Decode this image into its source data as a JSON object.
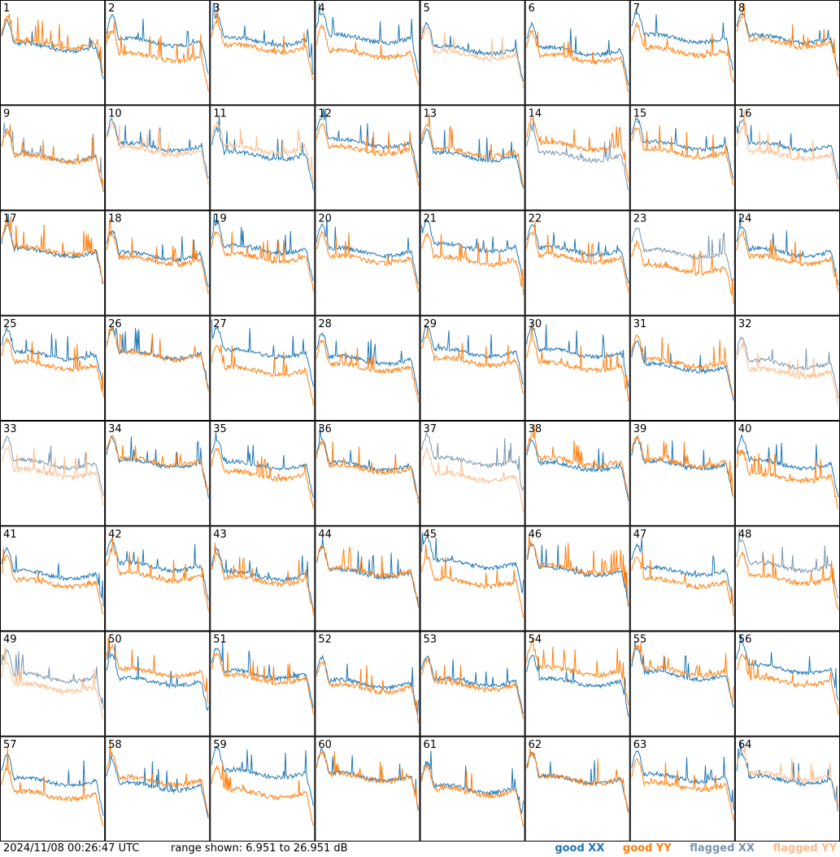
{
  "footer": {
    "timestamp": "2024/11/08 00:26:47 UTC",
    "range": "range shown: 6.951 to 26.951 dB"
  },
  "legend": {
    "good_xx": "good XX",
    "good_yy": "good YY",
    "flagged_xx": "flagged XX",
    "flagged_yy": "flagged YY"
  },
  "colors": {
    "good_xx": "#1f77b4",
    "good_yy": "#ff7f0e",
    "flagged_xx": "#7a96ad",
    "flagged_yy": "#ffbb88"
  },
  "chart_data": {
    "type": "line",
    "xlabel": "",
    "ylabel": "",
    "ylim": [
      6.951,
      26.951
    ],
    "units": "dB",
    "grid": "8x8 panels",
    "panels": [
      {
        "label": "1",
        "xx": "good",
        "yy": "good"
      },
      {
        "label": "2",
        "xx": "good",
        "yy": "good"
      },
      {
        "label": "3",
        "xx": "good",
        "yy": "good"
      },
      {
        "label": "4",
        "xx": "good",
        "yy": "good"
      },
      {
        "label": "5",
        "xx": "good",
        "yy": "flagged"
      },
      {
        "label": "6",
        "xx": "good",
        "yy": "good"
      },
      {
        "label": "7",
        "xx": "good",
        "yy": "good"
      },
      {
        "label": "8",
        "xx": "good",
        "yy": "good"
      },
      {
        "label": "9",
        "xx": "flagged",
        "yy": "good"
      },
      {
        "label": "10",
        "xx": "good",
        "yy": "flagged"
      },
      {
        "label": "11",
        "xx": "good",
        "yy": "flagged"
      },
      {
        "label": "12",
        "xx": "good",
        "yy": "good"
      },
      {
        "label": "13",
        "xx": "good",
        "yy": "good"
      },
      {
        "label": "14",
        "xx": "flagged",
        "yy": "good"
      },
      {
        "label": "15",
        "xx": "good",
        "yy": "good"
      },
      {
        "label": "16",
        "xx": "good",
        "yy": "flagged"
      },
      {
        "label": "17",
        "xx": "good",
        "yy": "good"
      },
      {
        "label": "18",
        "xx": "good",
        "yy": "good"
      },
      {
        "label": "19",
        "xx": "good",
        "yy": "good"
      },
      {
        "label": "20",
        "xx": "good",
        "yy": "good"
      },
      {
        "label": "21",
        "xx": "good",
        "yy": "good"
      },
      {
        "label": "22",
        "xx": "good",
        "yy": "good"
      },
      {
        "label": "23",
        "xx": "flagged",
        "yy": "good"
      },
      {
        "label": "24",
        "xx": "good",
        "yy": "good"
      },
      {
        "label": "25",
        "xx": "good",
        "yy": "good"
      },
      {
        "label": "26",
        "xx": "good",
        "yy": "good"
      },
      {
        "label": "27",
        "xx": "good",
        "yy": "good"
      },
      {
        "label": "28",
        "xx": "good",
        "yy": "good"
      },
      {
        "label": "29",
        "xx": "good",
        "yy": "good"
      },
      {
        "label": "30",
        "xx": "good",
        "yy": "good"
      },
      {
        "label": "31",
        "xx": "good",
        "yy": "good"
      },
      {
        "label": "32",
        "xx": "flagged",
        "yy": "flagged"
      },
      {
        "label": "33",
        "xx": "flagged",
        "yy": "flagged"
      },
      {
        "label": "34",
        "xx": "good",
        "yy": "good"
      },
      {
        "label": "35",
        "xx": "good",
        "yy": "good"
      },
      {
        "label": "36",
        "xx": "good",
        "yy": "good"
      },
      {
        "label": "37",
        "xx": "flagged",
        "yy": "flagged"
      },
      {
        "label": "38",
        "xx": "good",
        "yy": "good"
      },
      {
        "label": "39",
        "xx": "good",
        "yy": "good"
      },
      {
        "label": "40",
        "xx": "good",
        "yy": "good"
      },
      {
        "label": "41",
        "xx": "good",
        "yy": "good"
      },
      {
        "label": "42",
        "xx": "good",
        "yy": "good"
      },
      {
        "label": "43",
        "xx": "good",
        "yy": "good"
      },
      {
        "label": "44",
        "xx": "good",
        "yy": "good"
      },
      {
        "label": "45",
        "xx": "good",
        "yy": "good"
      },
      {
        "label": "46",
        "xx": "good",
        "yy": "good"
      },
      {
        "label": "47",
        "xx": "good",
        "yy": "good"
      },
      {
        "label": "48",
        "xx": "flagged",
        "yy": "good"
      },
      {
        "label": "49",
        "xx": "flagged",
        "yy": "flagged"
      },
      {
        "label": "50",
        "xx": "good",
        "yy": "good"
      },
      {
        "label": "51",
        "xx": "good",
        "yy": "good"
      },
      {
        "label": "52",
        "xx": "good",
        "yy": "good"
      },
      {
        "label": "53",
        "xx": "good",
        "yy": "good"
      },
      {
        "label": "54",
        "xx": "good",
        "yy": "good"
      },
      {
        "label": "55",
        "xx": "good",
        "yy": "good"
      },
      {
        "label": "56",
        "xx": "good",
        "yy": "good"
      },
      {
        "label": "57",
        "xx": "good",
        "yy": "good"
      },
      {
        "label": "58",
        "xx": "good",
        "yy": "good"
      },
      {
        "label": "59",
        "xx": "good",
        "yy": "good"
      },
      {
        "label": "60",
        "xx": "good",
        "yy": "good"
      },
      {
        "label": "61",
        "xx": "good",
        "yy": "good"
      },
      {
        "label": "62",
        "xx": "good",
        "yy": "good"
      },
      {
        "label": "63",
        "xx": "good",
        "yy": "good"
      },
      {
        "label": "64",
        "xx": "good",
        "yy": "flagged"
      }
    ]
  }
}
